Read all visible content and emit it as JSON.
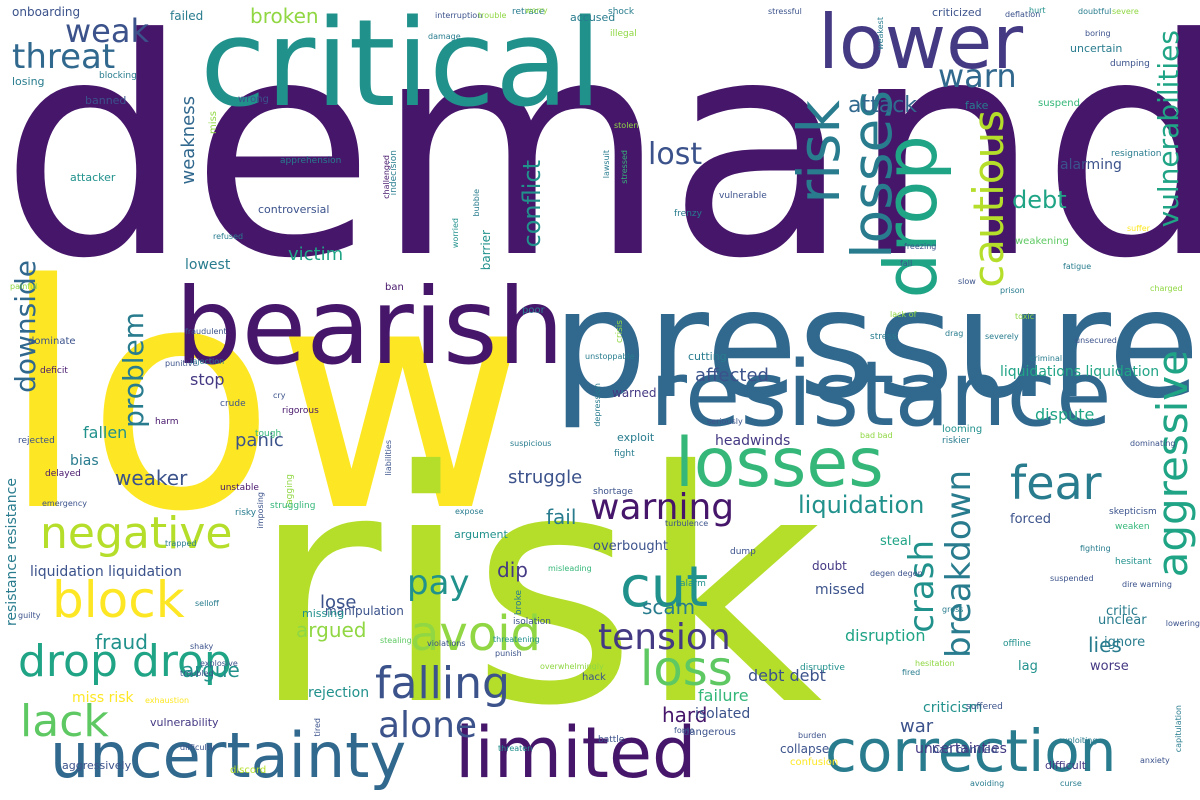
{
  "palette": {
    "dark-purple": "#46166b",
    "purple": "#443983",
    "indigo": "#3b528b",
    "blue": "#31688e",
    "teal-blue": "#287c8e",
    "teal": "#21918c",
    "sea-green": "#20a486",
    "green": "#35b779",
    "light-green": "#5ec962",
    "lime": "#90d743",
    "yellow-green": "#b5de2b",
    "yellow": "#fde725"
  },
  "words": [
    {
      "text": "demand",
      "color": "dark-purple"
    },
    {
      "text": "low",
      "color": "yellow"
    },
    {
      "text": "risk",
      "color": "yellow-green"
    },
    {
      "text": "critical",
      "color": "teal"
    },
    {
      "text": "pressure",
      "color": "blue"
    },
    {
      "text": "resistance",
      "color": "blue"
    },
    {
      "text": "bearish",
      "color": "dark-purple"
    },
    {
      "text": "lower",
      "color": "purple"
    },
    {
      "text": "uncertainty",
      "color": "blue"
    },
    {
      "text": "limited",
      "color": "dark-purple"
    },
    {
      "text": "correction",
      "color": "teal-blue"
    },
    {
      "text": "losses",
      "color": "green"
    },
    {
      "text": "losses",
      "color": "teal-blue"
    },
    {
      "text": "risk",
      "color": "teal-blue"
    },
    {
      "text": "drop",
      "color": "sea-green"
    },
    {
      "text": "drop drop",
      "color": "sea-green"
    },
    {
      "text": "negative",
      "color": "yellow-green"
    },
    {
      "text": "block",
      "color": "yellow"
    },
    {
      "text": "lack",
      "color": "light-green"
    },
    {
      "text": "avoid",
      "color": "lime"
    },
    {
      "text": "cut",
      "color": "teal"
    },
    {
      "text": "loss",
      "color": "light-green"
    },
    {
      "text": "falling",
      "color": "indigo"
    },
    {
      "text": "alone",
      "color": "indigo"
    },
    {
      "text": "tension",
      "color": "purple"
    },
    {
      "text": "fear",
      "color": "teal-blue"
    },
    {
      "text": "warning",
      "color": "dark-purple"
    },
    {
      "text": "aggressive",
      "color": "sea-green"
    },
    {
      "text": "cautious",
      "color": "yellow-green"
    },
    {
      "text": "breakdown",
      "color": "teal-blue"
    },
    {
      "text": "crash",
      "color": "teal"
    },
    {
      "text": "threat",
      "color": "blue"
    },
    {
      "text": "weak",
      "color": "indigo"
    },
    {
      "text": "warn",
      "color": "blue"
    },
    {
      "text": "lost",
      "color": "indigo"
    },
    {
      "text": "attack",
      "color": "blue"
    },
    {
      "text": "pay",
      "color": "teal"
    },
    {
      "text": "downside",
      "color": "blue"
    },
    {
      "text": "problem",
      "color": "teal-blue"
    },
    {
      "text": "liquidation",
      "color": "teal"
    },
    {
      "text": "vulnerabilities",
      "color": "sea-green"
    },
    {
      "text": "broken",
      "color": "lime"
    },
    {
      "text": "debt",
      "color": "sea-green"
    },
    {
      "text": "conflict",
      "color": "teal"
    },
    {
      "text": "victim",
      "color": "sea-green"
    },
    {
      "text": "fail",
      "color": "teal-blue"
    },
    {
      "text": "dip",
      "color": "purple"
    },
    {
      "text": "scam",
      "color": "teal-blue"
    },
    {
      "text": "weaker",
      "color": "indigo"
    },
    {
      "text": "fraud",
      "color": "teal"
    },
    {
      "text": "argue",
      "color": "teal"
    },
    {
      "text": "argued",
      "color": "lime"
    },
    {
      "text": "lose",
      "color": "indigo"
    },
    {
      "text": "hard",
      "color": "dark-purple"
    },
    {
      "text": "lies",
      "color": "teal-blue"
    },
    {
      "text": "war",
      "color": "indigo"
    },
    {
      "text": "debt debt",
      "color": "indigo"
    },
    {
      "text": "disruption",
      "color": "sea-green"
    },
    {
      "text": "dispute",
      "color": "sea-green"
    },
    {
      "text": "struggle",
      "color": "indigo"
    },
    {
      "text": "affected",
      "color": "indigo"
    },
    {
      "text": "panic",
      "color": "indigo"
    },
    {
      "text": "weakness",
      "color": "blue"
    },
    {
      "text": "fallen",
      "color": "teal"
    },
    {
      "text": "bias",
      "color": "teal-blue"
    },
    {
      "text": "stop",
      "color": "purple"
    },
    {
      "text": "lowest",
      "color": "teal-blue"
    },
    {
      "text": "alarming",
      "color": "indigo"
    },
    {
      "text": "failure",
      "color": "green"
    },
    {
      "text": "rejection",
      "color": "teal"
    },
    {
      "text": "missed",
      "color": "indigo"
    },
    {
      "text": "miss risk",
      "color": "yellow"
    },
    {
      "text": "headwinds",
      "color": "purple"
    },
    {
      "text": "isolated",
      "color": "indigo"
    },
    {
      "text": "criticism",
      "color": "teal"
    },
    {
      "text": "uncertainties",
      "color": "purple"
    },
    {
      "text": "resistance resistance",
      "color": "teal-blue"
    },
    {
      "text": "liquidation liquidation",
      "color": "indigo"
    },
    {
      "text": "liquidations liquidation",
      "color": "sea-green"
    },
    {
      "text": "overbought",
      "color": "indigo"
    },
    {
      "text": "forced",
      "color": "indigo"
    },
    {
      "text": "steal",
      "color": "sea-green"
    },
    {
      "text": "critic",
      "color": "teal-blue"
    },
    {
      "text": "worse",
      "color": "purple"
    },
    {
      "text": "unclear",
      "color": "teal-blue"
    },
    {
      "text": "ignore",
      "color": "teal-blue"
    },
    {
      "text": "lag",
      "color": "teal"
    },
    {
      "text": "collapse",
      "color": "indigo"
    },
    {
      "text": "doubt",
      "color": "purple"
    },
    {
      "text": "manipulation",
      "color": "indigo"
    },
    {
      "text": "missing",
      "color": "teal"
    },
    {
      "text": "vulnerability",
      "color": "purple"
    },
    {
      "text": "controversial",
      "color": "indigo"
    },
    {
      "text": "attacker",
      "color": "teal"
    },
    {
      "text": "onboarding",
      "color": "indigo"
    },
    {
      "text": "losing",
      "color": "teal-blue"
    },
    {
      "text": "banned",
      "color": "indigo"
    },
    {
      "text": "failed",
      "color": "teal-blue"
    },
    {
      "text": "accused",
      "color": "teal-blue"
    },
    {
      "text": "criticized",
      "color": "indigo"
    },
    {
      "text": "uncertain",
      "color": "teal-blue"
    },
    {
      "text": "fake",
      "color": "teal-blue"
    },
    {
      "text": "barrier",
      "color": "teal"
    },
    {
      "text": "cutting",
      "color": "teal-blue"
    },
    {
      "text": "warned",
      "color": "purple"
    },
    {
      "text": "exploit",
      "color": "teal-blue"
    },
    {
      "text": "argument",
      "color": "teal"
    },
    {
      "text": "ban banned",
      "color": "indigo"
    },
    {
      "text": "aggressively",
      "color": "indigo"
    },
    {
      "text": "discord",
      "color": "yellow-green"
    },
    {
      "text": "difficult",
      "color": "purple"
    },
    {
      "text": "wrong",
      "color": "indigo"
    },
    {
      "text": "miss",
      "color": "lime"
    },
    {
      "text": "ban",
      "color": "dark-purple"
    },
    {
      "text": "weakening",
      "color": "light-green"
    },
    {
      "text": "suspend",
      "color": "green"
    },
    {
      "text": "fight",
      "color": "teal-blue"
    },
    {
      "text": "crisis",
      "color": "lime"
    },
    {
      "text": "stress",
      "color": "teal-blue"
    },
    {
      "text": "poor",
      "color": "teal-blue"
    },
    {
      "text": "unstable",
      "color": "dark-purple"
    },
    {
      "text": "risky",
      "color": "teal-blue"
    },
    {
      "text": "delayed",
      "color": "dark-purple"
    },
    {
      "text": "harm",
      "color": "dark-purple"
    },
    {
      "text": "cry",
      "color": "indigo"
    },
    {
      "text": "rigorous",
      "color": "dark-purple"
    },
    {
      "text": "crude",
      "color": "indigo"
    },
    {
      "text": "tough",
      "color": "green"
    },
    {
      "text": "lagging",
      "color": "lime"
    },
    {
      "text": "struggling",
      "color": "green"
    },
    {
      "text": "shortage",
      "color": "indigo"
    },
    {
      "text": "broke",
      "color": "teal-blue"
    },
    {
      "text": "hack",
      "color": "indigo"
    },
    {
      "text": "dangerous",
      "color": "indigo"
    },
    {
      "text": "confusion",
      "color": "yellow"
    },
    {
      "text": "disruptive",
      "color": "teal"
    },
    {
      "text": "suffered",
      "color": "indigo"
    },
    {
      "text": "offline",
      "color": "teal"
    },
    {
      "text": "hesitant",
      "color": "teal"
    },
    {
      "text": "skepticism",
      "color": "indigo"
    },
    {
      "text": "weaken",
      "color": "green"
    },
    {
      "text": "looming",
      "color": "teal"
    },
    {
      "text": "riskier",
      "color": "teal-blue"
    },
    {
      "text": "dump",
      "color": "indigo"
    },
    {
      "text": "alarm",
      "color": "teal"
    },
    {
      "text": "isolation",
      "color": "indigo"
    },
    {
      "text": "battle",
      "color": "indigo"
    },
    {
      "text": "painful",
      "color": "lime"
    },
    {
      "text": "dominate",
      "color": "indigo"
    },
    {
      "text": "deficit",
      "color": "dark-purple"
    },
    {
      "text": "rejected",
      "color": "indigo"
    },
    {
      "text": "dumping",
      "color": "indigo"
    },
    {
      "text": "resignation",
      "color": "teal-blue"
    },
    {
      "text": "stolen",
      "color": "lime"
    },
    {
      "text": "lawsuit",
      "color": "teal-blue"
    },
    {
      "text": "retrace",
      "color": "teal-blue"
    },
    {
      "text": "shock",
      "color": "teal-blue"
    },
    {
      "text": "illegal",
      "color": "lime"
    },
    {
      "text": "weakest",
      "color": "teal-blue"
    },
    {
      "text": "indecision",
      "color": "teal-blue"
    },
    {
      "text": "bubble",
      "color": "teal-blue"
    },
    {
      "text": "vulnerable",
      "color": "indigo"
    },
    {
      "text": "frenzy",
      "color": "teal-blue"
    },
    {
      "text": "challenged",
      "color": "dark-purple"
    },
    {
      "text": "apprehension",
      "color": "teal-blue"
    },
    {
      "text": "refused",
      "color": "teal-blue"
    },
    {
      "text": "worried",
      "color": "teal"
    },
    {
      "text": "stressed",
      "color": "green"
    },
    {
      "text": "blocking",
      "color": "teal-blue"
    },
    {
      "text": "hesitation",
      "color": "lime"
    },
    {
      "text": "fomo",
      "color": "indigo"
    },
    {
      "text": "burden",
      "color": "indigo"
    },
    {
      "text": "threaten",
      "color": "teal"
    },
    {
      "text": "tired",
      "color": "indigo"
    },
    {
      "text": "bad bad",
      "color": "lime"
    },
    {
      "text": "seriously",
      "color": "indigo"
    },
    {
      "text": "severely",
      "color": "teal-blue"
    },
    {
      "text": "prison",
      "color": "teal-blue"
    },
    {
      "text": "unsecured",
      "color": "indigo"
    },
    {
      "text": "criminal",
      "color": "teal-blue"
    },
    {
      "text": "charged",
      "color": "lime"
    },
    {
      "text": "unstoppable",
      "color": "teal-blue"
    },
    {
      "text": "depression",
      "color": "teal-blue"
    },
    {
      "text": "threatening",
      "color": "teal"
    },
    {
      "text": "violations",
      "color": "indigo"
    },
    {
      "text": "punish",
      "color": "indigo"
    },
    {
      "text": "stealing",
      "color": "light-green"
    },
    {
      "text": "overwhelmingly",
      "color": "lime"
    },
    {
      "text": "liabilities",
      "color": "indigo"
    },
    {
      "text": "imposing",
      "color": "indigo"
    },
    {
      "text": "avoiding",
      "color": "teal-blue"
    },
    {
      "text": "curse",
      "color": "teal-blue"
    },
    {
      "text": "fighting",
      "color": "teal-blue"
    },
    {
      "text": "lowering",
      "color": "indigo"
    },
    {
      "text": "anxiety",
      "color": "indigo"
    },
    {
      "text": "capitulation",
      "color": "teal-blue"
    },
    {
      "text": "dominating",
      "color": "indigo"
    },
    {
      "text": "exploiting",
      "color": "teal-blue"
    },
    {
      "text": "suspended",
      "color": "indigo"
    },
    {
      "text": "difficulty",
      "color": "indigo"
    },
    {
      "text": "trapped",
      "color": "teal-blue"
    },
    {
      "text": "exhaustion",
      "color": "yellow"
    },
    {
      "text": "expose",
      "color": "teal-blue"
    },
    {
      "text": "suspicious",
      "color": "teal-blue"
    },
    {
      "text": "misleading",
      "color": "green"
    },
    {
      "text": "turbulence",
      "color": "indigo"
    },
    {
      "text": "degen degen",
      "color": "indigo"
    },
    {
      "text": "gross",
      "color": "teal-blue"
    },
    {
      "text": "fired",
      "color": "teal-blue"
    },
    {
      "text": "dire warning",
      "color": "indigo"
    },
    {
      "text": "selloff",
      "color": "teal-blue"
    },
    {
      "text": "shaky",
      "color": "indigo"
    },
    {
      "text": "explosive",
      "color": "indigo"
    },
    {
      "text": "troubled",
      "color": "indigo"
    },
    {
      "text": "interruption",
      "color": "indigo"
    },
    {
      "text": "damage",
      "color": "teal-blue"
    },
    {
      "text": "stressful",
      "color": "indigo"
    },
    {
      "text": "severe",
      "color": "lime"
    },
    {
      "text": "worry",
      "color": "lime"
    },
    {
      "text": "boring",
      "color": "indigo"
    },
    {
      "text": "trouble",
      "color": "lime"
    },
    {
      "text": "hurt",
      "color": "teal"
    },
    {
      "text": "suffer",
      "color": "yellow"
    },
    {
      "text": "doubtful",
      "color": "teal-blue"
    },
    {
      "text": "toxic",
      "color": "lime"
    },
    {
      "text": "emergency",
      "color": "indigo"
    },
    {
      "text": "guilty",
      "color": "indigo"
    },
    {
      "text": "punitive",
      "color": "indigo"
    },
    {
      "text": "fraudulent",
      "color": "indigo"
    },
    {
      "text": "deflation",
      "color": "indigo"
    },
    {
      "text": "injection",
      "color": "teal-blue"
    },
    {
      "text": "fatigue",
      "color": "teal-blue"
    },
    {
      "text": "lack of",
      "color": "lime"
    },
    {
      "text": "drag",
      "color": "teal-blue"
    },
    {
      "text": "fall",
      "color": "indigo"
    },
    {
      "text": "freezing",
      "color": "indigo"
    },
    {
      "text": "slow",
      "color": "indigo"
    },
    {
      "text": "sluggish",
      "color": "indigo"
    },
    {
      "text": "shakeup",
      "color": "indigo"
    },
    {
      "text": "imbalance",
      "color": "indigo"
    },
    {
      "text": "abduction",
      "color": "indigo"
    },
    {
      "text": "postponed",
      "color": "teal-blue"
    },
    {
      "text": "flagged",
      "color": "indigo"
    },
    {
      "text": "deprived",
      "color": "indigo"
    },
    {
      "text": "disaster",
      "color": "indigo"
    },
    {
      "text": "regret",
      "color": "indigo"
    }
  ]
}
